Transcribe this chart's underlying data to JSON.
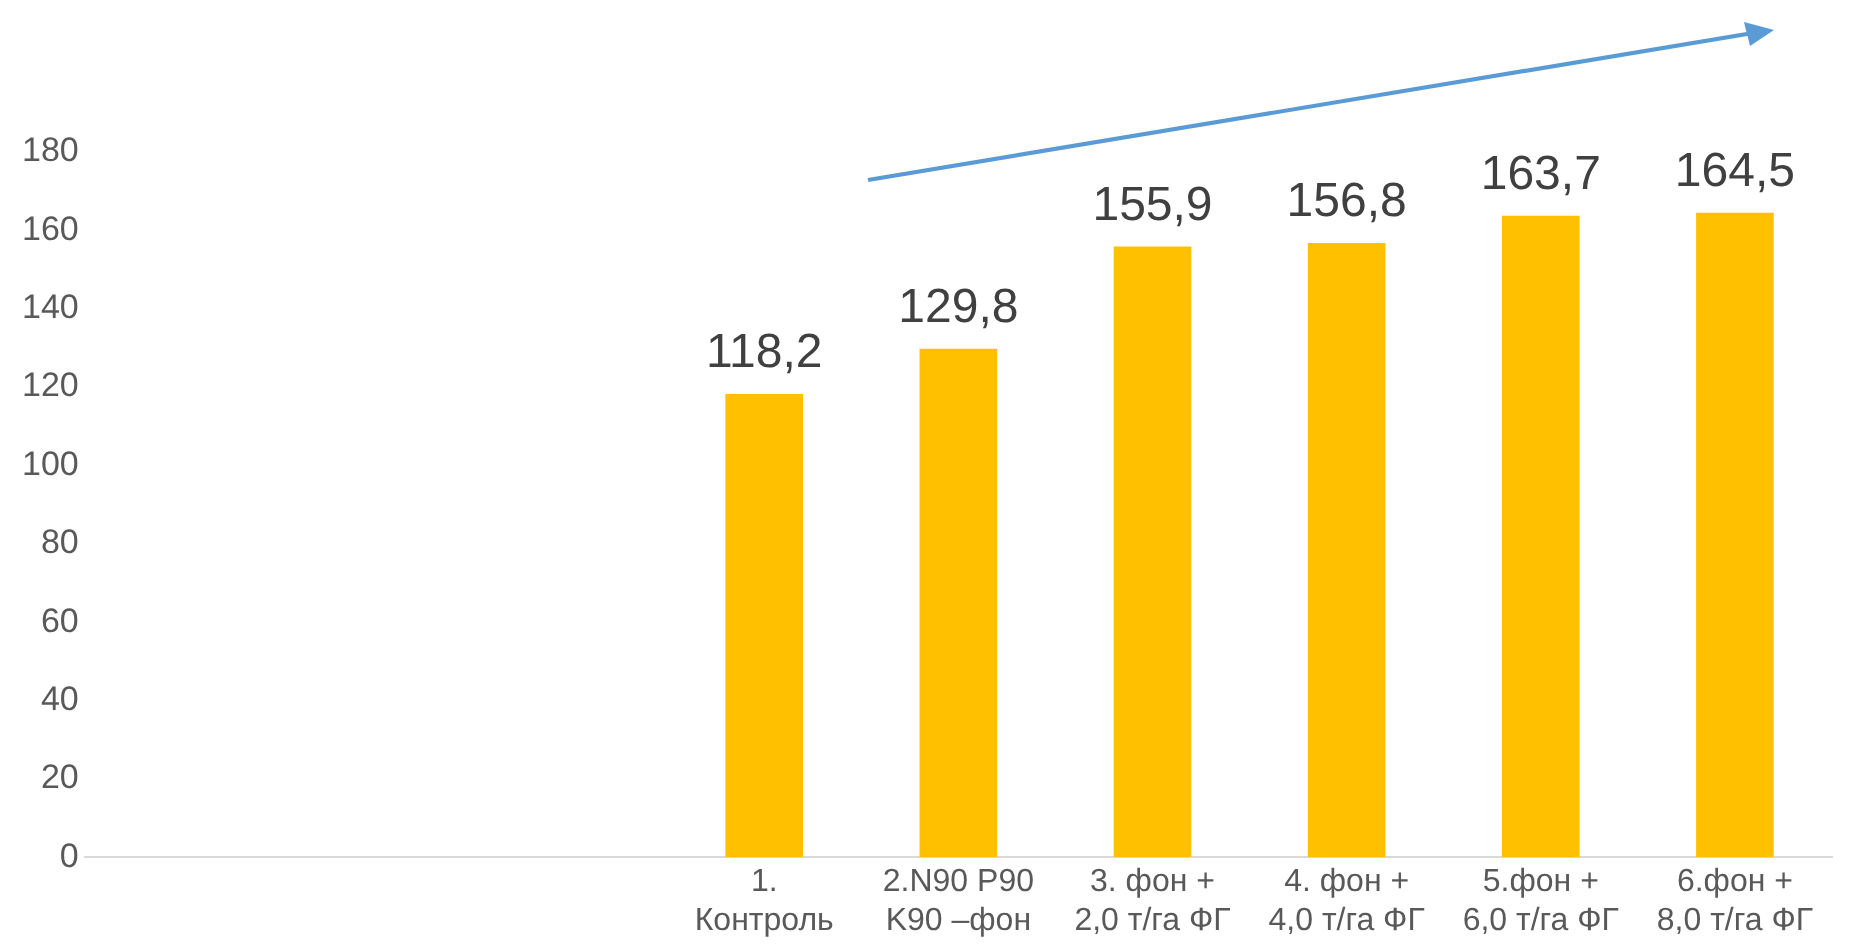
{
  "chart_data": {
    "type": "bar",
    "categories": [
      null,
      null,
      null,
      "1. Контроль",
      "2.N90 P90 K90 –фон",
      "3. фон + 2,0 т/га ФГ",
      "4. фон + 4,0 т/га ФГ",
      "5.фон + 6,0 т/га ФГ",
      "6.фон + 8,0 т/га ФГ"
    ],
    "values": [
      null,
      null,
      null,
      118.2,
      129.8,
      155.9,
      156.8,
      163.7,
      164.5
    ],
    "value_labels": [
      null,
      null,
      null,
      "118,2",
      "129,8",
      "155,9",
      "156,8",
      "163,7",
      "164,5"
    ],
    "color": "#ffc000",
    "ylim": [
      0,
      180
    ],
    "yticks": [
      0,
      20,
      40,
      60,
      80,
      100,
      120,
      140,
      160,
      180
    ],
    "grid": false,
    "legend": false
  }
}
